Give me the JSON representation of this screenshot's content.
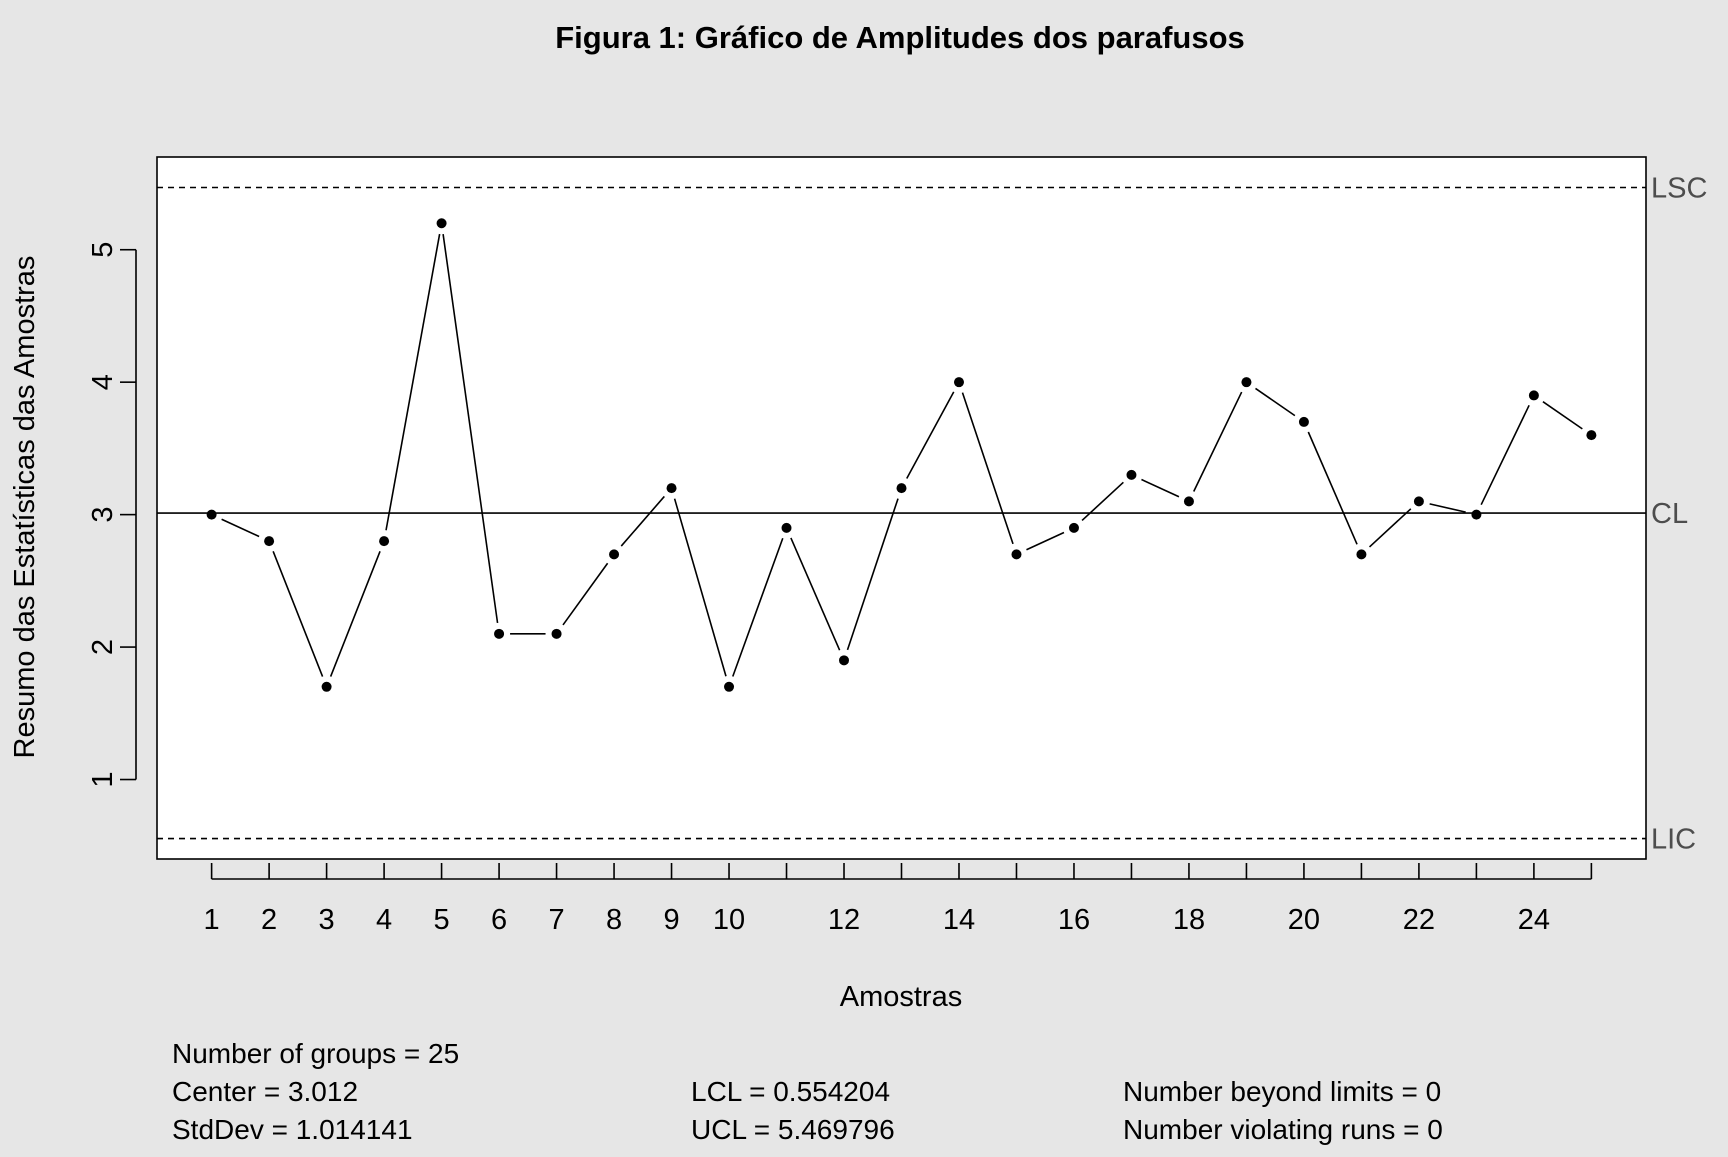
{
  "chart_data": {
    "type": "line",
    "title": "Figura 1: Gráfico de Amplitudes dos parafusos",
    "xlabel": "Amostras",
    "ylabel": "Resumo das Estatísticas das Amostras",
    "x": [
      1,
      2,
      3,
      4,
      5,
      6,
      7,
      8,
      9,
      10,
      11,
      12,
      13,
      14,
      15,
      16,
      17,
      18,
      19,
      20,
      21,
      22,
      23,
      24,
      25
    ],
    "values": [
      3.0,
      2.8,
      1.7,
      2.8,
      5.2,
      2.1,
      2.1,
      2.7,
      3.2,
      1.7,
      2.9,
      1.9,
      3.2,
      4.0,
      2.7,
      2.9,
      3.3,
      3.1,
      4.0,
      3.7,
      2.7,
      3.1,
      3.0,
      3.9,
      3.6
    ],
    "xlim": [
      0.05,
      25.95
    ],
    "ylim": [
      0.4,
      5.7
    ],
    "x_tick_labels": [
      "1",
      "2",
      "3",
      "4",
      "5",
      "6",
      "7",
      "8",
      "9",
      "10",
      "12",
      "14",
      "16",
      "18",
      "20",
      "22",
      "24"
    ],
    "x_tick_label_values": [
      1,
      2,
      3,
      4,
      5,
      6,
      7,
      8,
      9,
      10,
      12,
      14,
      16,
      18,
      20,
      22,
      24
    ],
    "y_ticks": [
      1,
      2,
      3,
      4,
      5
    ],
    "y_tick_labels": [
      "1",
      "2",
      "3",
      "4",
      "5"
    ],
    "center_line": {
      "value": 3.012,
      "label": "CL"
    },
    "upper_limit": {
      "value": 5.469796,
      "label": "LSC"
    },
    "lower_limit": {
      "value": 0.554204,
      "label": "LIC"
    },
    "grid": false,
    "colors": {
      "background": "#e6e6e6",
      "plot_bg": "#ffffff",
      "line": "#000000",
      "limit_label": "#4d4d4d"
    }
  },
  "stats": {
    "groups": "Number of groups = 25",
    "center": "Center = 3.012",
    "stddev": "StdDev = 1.014141",
    "lcl": "LCL = 0.554204",
    "ucl": "UCL = 5.469796",
    "beyond": "Number beyond limits = 0",
    "violating": "Number violating runs = 0"
  }
}
